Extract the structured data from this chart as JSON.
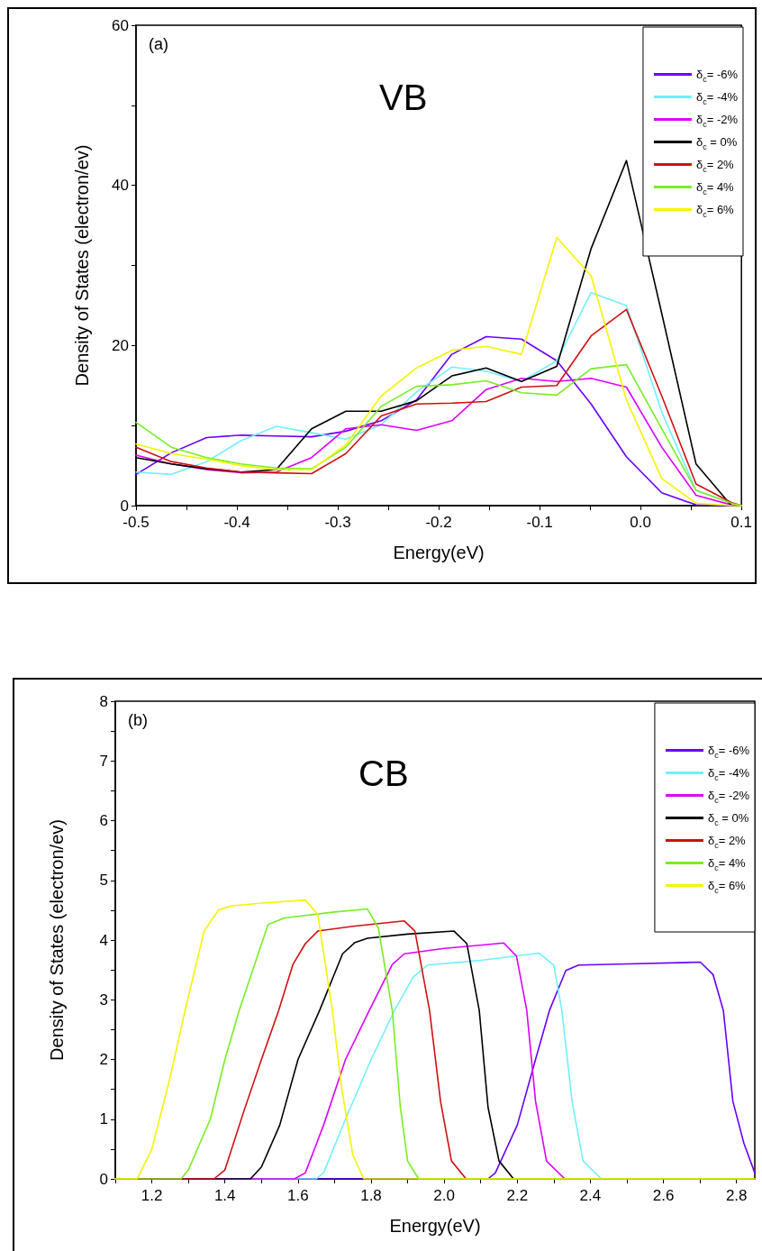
{
  "chart_data": [
    {
      "type": "line",
      "annotations": [
        "(a)",
        "VB"
      ],
      "xlabel": "Energy(eV)",
      "ylabel": "Density of States (electron/ev)",
      "legend": "top right",
      "marker": "none",
      "xlim": [
        -0.5,
        0.1
      ],
      "xticks": [
        -0.5,
        {
          "value": -0.45,
          "label": null
        },
        -0.4,
        {
          "value": -0.35,
          "label": null
        },
        -0.3,
        {
          "value": -0.25,
          "label": null
        },
        -0.2,
        {
          "value": -0.15,
          "label": null
        },
        -0.1,
        {
          "value": -0.05,
          "label": null
        },
        {
          "value": 0,
          "label": "0.0"
        },
        {
          "value": 0.05,
          "label": null
        },
        0.1
      ],
      "ylim": [
        0,
        60
      ],
      "yticks": [
        0,
        {
          "value": 10,
          "label": null
        },
        20,
        {
          "value": 30,
          "label": null
        },
        40,
        {
          "value": 50,
          "label": null
        },
        60
      ],
      "x": [
        -0.5,
        -0.465,
        -0.43,
        -0.396,
        -0.361,
        -0.326,
        -0.292,
        -0.257,
        -0.222,
        -0.187,
        -0.153,
        -0.118,
        -0.083,
        -0.049,
        -0.014,
        0.021,
        0.055,
        0.09,
        0.1
      ],
      "series": [
        {
          "name": "δ$_{c}$= -6%",
          "color": "#6a00ff",
          "values": [
            3.9,
            6.6,
            8.5,
            8.8,
            8.7,
            8.6,
            9.3,
            10.6,
            13.2,
            18.9,
            21.1,
            20.8,
            18.1,
            12.7,
            6.1,
            1.6,
            0.1,
            0,
            0
          ]
        },
        {
          "name": "δ$_{c}$= -4%",
          "color": "#70f0ff",
          "values": [
            4.2,
            3.9,
            5.5,
            8.1,
            9.9,
            9.1,
            8.3,
            10.1,
            14.2,
            17.3,
            16.8,
            15.5,
            18.1,
            26.6,
            25,
            11.7,
            1.9,
            0.3,
            0
          ]
        },
        {
          "name": "δ$_{c}$= -2%",
          "color": "#dd00ff",
          "values": [
            6.3,
            5.2,
            4.5,
            4.1,
            4.2,
            6,
            9.6,
            10.1,
            9.4,
            10.6,
            14.5,
            15.9,
            15.5,
            15.9,
            14.8,
            7.3,
            1.3,
            0.1,
            0
          ]
        },
        {
          "name": "δ$_{c}$ = 0%",
          "color": "#000000",
          "values": [
            6,
            5.2,
            4.6,
            4.2,
            4.5,
            9.6,
            11.8,
            11.8,
            13.1,
            16.2,
            17.2,
            15.5,
            17.4,
            32.1,
            43.1,
            24,
            5.2,
            0,
            0
          ]
        },
        {
          "name": "δ$_{c}$= 2%",
          "color": "#d01010",
          "values": [
            7.3,
            5.5,
            4.7,
            4.2,
            4.1,
            4,
            6.5,
            11.2,
            12.7,
            12.8,
            13,
            14.8,
            15,
            21.2,
            24.5,
            13.7,
            2.7,
            0.4,
            0
          ]
        },
        {
          "name": "δ$_{c}$= 4%",
          "color": "#77ee22",
          "values": [
            10.4,
            7.3,
            6,
            5.2,
            4.7,
            4.6,
            7.3,
            12.4,
            14.9,
            15.1,
            15.6,
            14.1,
            13.8,
            17.1,
            17.6,
            9.6,
            1.9,
            0.3,
            0
          ]
        },
        {
          "name": "δ$_{c}$= 6%",
          "color": "#f5f500",
          "values": [
            7.7,
            6.5,
            5.8,
            5,
            4.5,
            4.5,
            7.6,
            13.7,
            17.2,
            19.4,
            19.9,
            18.9,
            33.5,
            28.7,
            13.2,
            3.4,
            0.3,
            0,
            0
          ]
        }
      ]
    },
    {
      "type": "line",
      "annotations": [
        "(b)",
        "CB"
      ],
      "xlabel": "Energy(eV)",
      "ylabel": "Density of States (electron/ev)",
      "legend": "top right",
      "marker": "none",
      "xlim": [
        1.1,
        2.85
      ],
      "xticks": [
        {
          "value": 1.1,
          "label": null
        },
        1.2,
        {
          "value": 1.3,
          "label": null
        },
        1.4,
        {
          "value": 1.5,
          "label": null
        },
        1.6,
        {
          "value": 1.7,
          "label": null
        },
        1.8,
        {
          "value": 1.9,
          "label": null
        },
        {
          "value": 2,
          "label": "2.0"
        },
        {
          "value": 2.1,
          "label": null
        },
        2.2,
        {
          "value": 2.3,
          "label": null
        },
        2.4,
        {
          "value": 2.5,
          "label": null
        },
        2.6,
        {
          "value": 2.7,
          "label": null
        },
        2.8
      ],
      "ylim": [
        0,
        8
      ],
      "yticks": [
        0,
        {
          "value": 0.5,
          "label": null
        },
        1,
        {
          "value": 1.5,
          "label": null
        },
        2,
        {
          "value": 2.5,
          "label": null
        },
        3,
        {
          "value": 3.5,
          "label": null
        },
        4,
        {
          "value": 4.5,
          "label": null
        },
        5,
        {
          "value": 5.5,
          "label": null
        },
        6,
        {
          "value": 6.5,
          "label": null
        },
        7,
        {
          "value": 7.5,
          "label": null
        },
        8
      ],
      "series": [
        {
          "name": "δ$_{c}$= -6%",
          "color": "#6a00ff",
          "x": [
            1.1,
            2.12,
            2.14,
            2.2,
            2.25,
            2.288,
            2.333,
            2.368,
            2.5,
            2.701,
            2.736,
            2.764,
            2.79,
            2.82,
            2.85
          ],
          "values": [
            0,
            0,
            0.1,
            0.9,
            2,
            2.82,
            3.49,
            3.58,
            3.6,
            3.63,
            3.42,
            2.82,
            1.3,
            0.6,
            0.1
          ]
        },
        {
          "name": "δ$_{c}$= -4%",
          "color": "#70f0ff",
          "x": [
            1.1,
            1.65,
            1.67,
            1.73,
            1.8,
            1.864,
            1.915,
            1.954,
            2.1,
            2.26,
            2.3,
            2.322,
            2.35,
            2.38,
            2.43,
            2.85
          ],
          "values": [
            0,
            0,
            0.1,
            1,
            2,
            2.82,
            3.38,
            3.58,
            3.66,
            3.78,
            3.58,
            2.82,
            1.3,
            0.3,
            0,
            0
          ]
        },
        {
          "name": "δ$_{c}$= -2%",
          "color": "#dd00ff",
          "x": [
            1.1,
            1.59,
            1.62,
            1.67,
            1.73,
            1.795,
            1.858,
            1.891,
            2.0,
            2.163,
            2.198,
            2.226,
            2.25,
            2.28,
            2.33,
            2.85
          ],
          "values": [
            0,
            0,
            0.1,
            0.9,
            2,
            2.82,
            3.59,
            3.77,
            3.86,
            3.95,
            3.73,
            2.82,
            1.3,
            0.3,
            0,
            0
          ]
        },
        {
          "name": "δ$_{c}$ = 0%",
          "color": "#000000",
          "x": [
            1.1,
            1.47,
            1.5,
            1.55,
            1.6,
            1.659,
            1.722,
            1.756,
            1.79,
            1.9,
            2.027,
            2.062,
            2.096,
            2.12,
            2.15,
            2.19,
            2.85
          ],
          "values": [
            0,
            0,
            0.2,
            0.9,
            2,
            2.82,
            3.77,
            3.96,
            4.03,
            4.1,
            4.15,
            3.94,
            2.82,
            1.2,
            0.3,
            0,
            0
          ]
        },
        {
          "name": "δ$_{c}$= 2%",
          "color": "#d01010",
          "x": [
            1.1,
            1.37,
            1.4,
            1.45,
            1.5,
            1.547,
            1.586,
            1.62,
            1.654,
            1.75,
            1.891,
            1.92,
            1.96,
            1.99,
            2.02,
            2.06,
            2.85
          ],
          "values": [
            0,
            0,
            0.15,
            1.1,
            2,
            2.82,
            3.59,
            3.94,
            4.15,
            4.23,
            4.32,
            4.15,
            2.82,
            1.3,
            0.3,
            0,
            0
          ]
        },
        {
          "name": "δ$_{c}$= 4%",
          "color": "#77ee22",
          "x": [
            1.1,
            1.28,
            1.3,
            1.36,
            1.4,
            1.439,
            1.518,
            1.563,
            1.7,
            1.79,
            1.82,
            1.858,
            1.88,
            1.9,
            1.93,
            2.85
          ],
          "values": [
            0,
            0,
            0.15,
            1,
            2,
            2.82,
            4.26,
            4.37,
            4.47,
            4.52,
            4.2,
            2.82,
            1.2,
            0.3,
            0,
            0
          ]
        },
        {
          "name": "δ$_{c}$= 6%",
          "color": "#f5f500",
          "x": [
            1.1,
            1.16,
            1.2,
            1.25,
            1.291,
            1.343,
            1.382,
            1.416,
            1.5,
            1.62,
            1.654,
            1.694,
            1.72,
            1.75,
            1.78,
            2.85
          ],
          "values": [
            0,
            0,
            0.5,
            1.7,
            2.82,
            4.15,
            4.5,
            4.57,
            4.62,
            4.67,
            4.43,
            2.82,
            1.5,
            0.4,
            0,
            0
          ]
        }
      ]
    }
  ]
}
